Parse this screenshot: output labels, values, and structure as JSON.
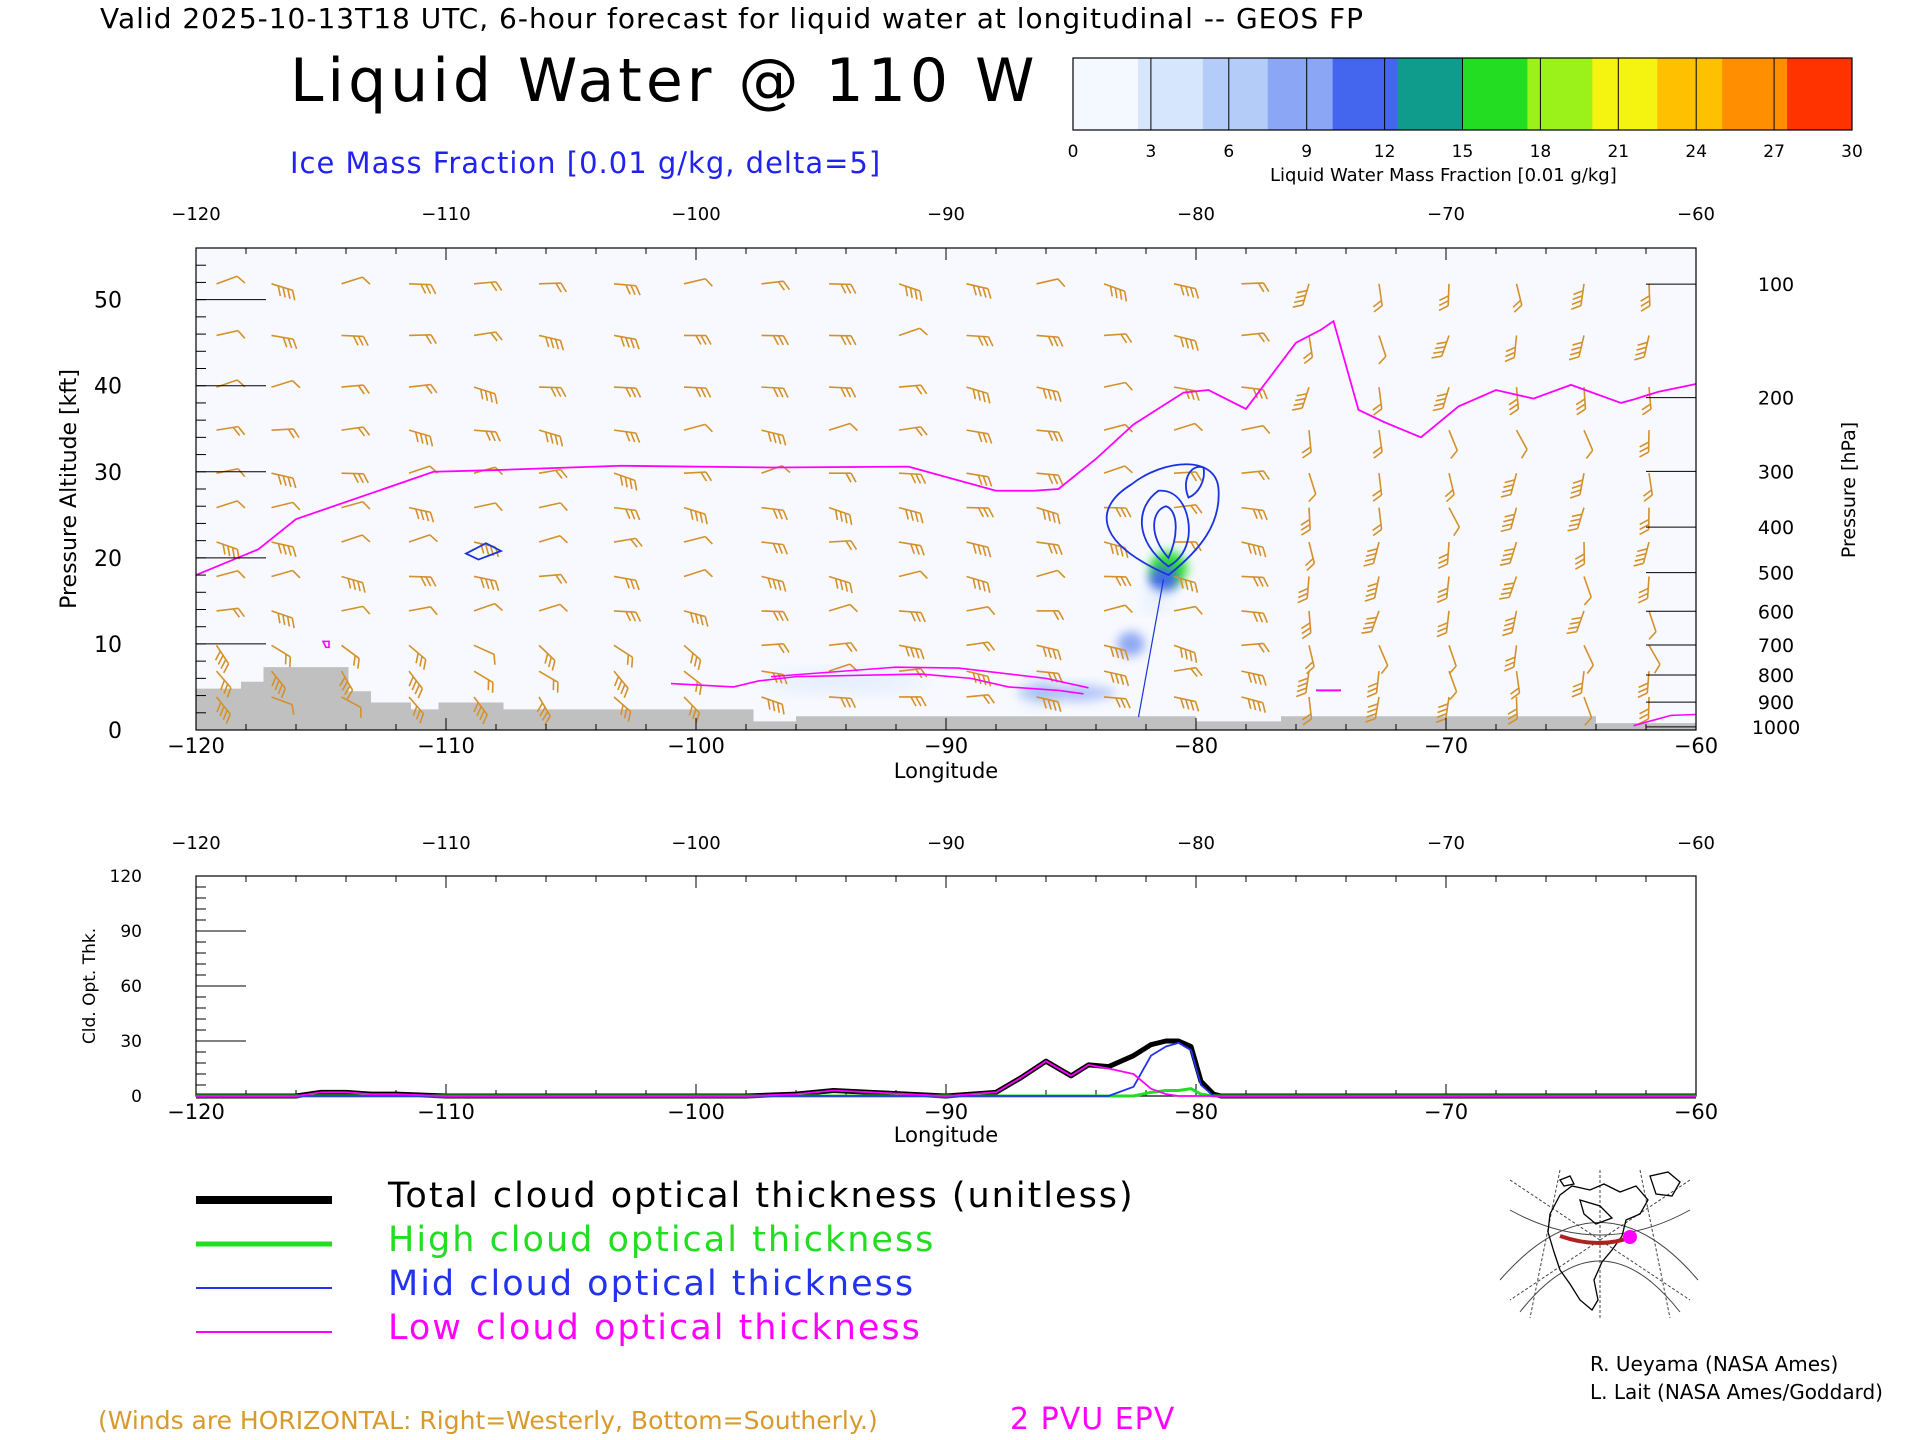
{
  "header": "Valid 2025-10-13T18 UTC, 6-hour forecast for liquid water at longitudinal -- GEOS FP",
  "title": "Liquid Water @ 110 W",
  "subtitle": "Ice Mass Fraction [0.01 g/kg, delta=5]",
  "colorbar": {
    "ticks": [
      "0",
      "3",
      "6",
      "9",
      "12",
      "15",
      "18",
      "21",
      "24",
      "27",
      "30"
    ],
    "label": "Liquid Water Mass Fraction [0.01 g/kg]",
    "colors": [
      "#f4f8ff",
      "#d6e6fc",
      "#b4cdf8",
      "#8aa6f4",
      "#4466ee",
      "#0f9c8c",
      "#22dd22",
      "#9bf21a",
      "#f4f410",
      "#ffc000",
      "#ff8f00",
      "#ff3300"
    ]
  },
  "colors": {
    "wind": "#d4912a",
    "epv": "#ff00ff",
    "ice_contour": "#1a33dd",
    "terrain": "#c0c0c0"
  },
  "legend": [
    {
      "label": "Total cloud optical thickness (unitless)",
      "color": "#000000"
    },
    {
      "label": "High cloud optical thickness",
      "color": "#22dd22"
    },
    {
      "label": "Mid cloud optical thickness",
      "color": "#2233ee"
    },
    {
      "label": "Low cloud optical thickness",
      "color": "#ff00ff"
    }
  ],
  "credits": [
    "R. Ueyama (NASA Ames)",
    "L. Lait (NASA Ames/Goddard)"
  ],
  "wind_note": "(Winds are HORIZONTAL: Right=Westerly, Bottom=Southerly.)",
  "epv_label": "2 PVU EPV",
  "chart_data": [
    {
      "type": "heatmap",
      "title": "Liquid Water @ 110 W",
      "xlabel": "Longitude",
      "ylabel": "Pressure Altitude [kft]",
      "y2label": "Pressure [hPa]",
      "xlim": [
        -120,
        -60
      ],
      "ylim": [
        0,
        56
      ],
      "x_ticks": [
        "−120",
        "−110",
        "−100",
        "−90",
        "−80",
        "−70",
        "−60"
      ],
      "y_ticks": [
        "0",
        "10",
        "20",
        "30",
        "40",
        "50"
      ],
      "pressure_ticks": [
        "100",
        "200",
        "300",
        "400",
        "500",
        "600",
        "700",
        "800",
        "900",
        "1000"
      ],
      "liquid_water_blobs": [
        {
          "lon": -81.1,
          "alt": 18.8,
          "value": 16
        },
        {
          "lon": -81.3,
          "alt": 17.5,
          "value": 10
        },
        {
          "lon": -81.6,
          "alt": 15.0,
          "value": 4
        },
        {
          "lon": -82.6,
          "alt": 10.0,
          "value": 9
        },
        {
          "lon": -86.2,
          "alt": 4.5,
          "value": 7
        },
        {
          "lon": -84.5,
          "alt": 4.2,
          "value": 3
        },
        {
          "lon": -95.0,
          "alt": 5.5,
          "value": 2
        },
        {
          "lon": -116.5,
          "alt": 7.0,
          "value": 1
        }
      ],
      "epv_2pvu": {
        "lon": [
          -120,
          -117.5,
          -116,
          -113,
          -110.5,
          -108,
          -103,
          -97,
          -91.5,
          -88,
          -86.5,
          -85.5,
          -84,
          -82.5,
          -80.5,
          -79.5,
          -78,
          -76,
          -75,
          -74.5,
          -73.5,
          -72.5,
          -71,
          -69.5,
          -68,
          -66.5,
          -65,
          -63,
          -62.5,
          -61.5,
          -60
        ],
        "alt": [
          18,
          21,
          24.5,
          27.5,
          30,
          30.2,
          30.7,
          30.5,
          30.6,
          27.8,
          27.8,
          28,
          31.5,
          35.5,
          39.2,
          39.5,
          37.3,
          45,
          46.5,
          47.5,
          37.2,
          35.8,
          34,
          37.6,
          39.5,
          38.5,
          40.1,
          38,
          38.4,
          39.3,
          40.2
        ]
      },
      "terrain": {
        "lon": [
          -120,
          -118.2,
          -117.3,
          -113.9,
          -113.0,
          -111.4,
          -110.3,
          -107.7,
          -101.0,
          -97.7,
          -96.0,
          -94.0,
          -88.0,
          -80.0,
          -76.6,
          -66.5,
          -64.0,
          -60.0
        ],
        "alt": [
          4.8,
          5.6,
          7.3,
          4.5,
          3.2,
          2.4,
          3.2,
          2.4,
          2.4,
          1.0,
          1.6,
          1.6,
          1.6,
          1.0,
          1.6,
          1.6,
          0.8,
          0.8
        ]
      }
    },
    {
      "type": "line",
      "xlabel": "Longitude",
      "ylabel": "Cld. Opt. Thk.",
      "xlim": [
        -120,
        -60
      ],
      "ylim": [
        0,
        120
      ],
      "x_ticks": [
        "−120",
        "−110",
        "−100",
        "−90",
        "−80",
        "−70",
        "−60"
      ],
      "y_ticks": [
        "0",
        "30",
        "60",
        "90",
        "120"
      ],
      "x": [
        -120,
        -116,
        -115,
        -114,
        -113,
        -112,
        -110,
        -100,
        -98,
        -96,
        -94.5,
        -93,
        -90,
        -88,
        -87,
        -86,
        -85,
        -84.3,
        -83.5,
        -82.5,
        -81.8,
        -81.2,
        -80.7,
        -80.2,
        -79.8,
        -79.3,
        -79,
        -78,
        -60
      ],
      "series": [
        {
          "name": "Total cloud optical thickness (unitless)",
          "values": [
            0,
            0,
            2,
            2,
            1,
            1,
            0,
            0,
            0,
            1,
            3,
            2,
            0,
            2,
            10,
            19,
            11,
            17,
            16,
            22,
            28,
            30,
            30,
            27,
            8,
            1,
            0,
            0,
            0
          ]
        },
        {
          "name": "High cloud optical thickness",
          "values": [
            0,
            0,
            0,
            0,
            0,
            0,
            0,
            0,
            0,
            0,
            0,
            0,
            0,
            0,
            0,
            0,
            0,
            0,
            0,
            0,
            2,
            3,
            3,
            4,
            1,
            0,
            0,
            0,
            0
          ]
        },
        {
          "name": "Mid cloud optical thickness",
          "values": [
            0,
            0,
            0,
            0,
            0,
            0,
            0,
            0,
            0,
            0,
            0,
            0,
            0,
            0,
            0,
            0,
            0,
            0,
            0,
            5,
            22,
            27,
            29,
            25,
            6,
            0,
            0,
            0,
            0
          ]
        },
        {
          "name": "Low cloud optical thickness",
          "values": [
            0,
            0,
            2,
            2,
            1,
            1,
            0,
            0,
            0,
            1,
            3,
            2,
            0,
            2,
            10,
            19,
            11,
            17,
            15,
            12,
            4,
            1,
            0,
            0,
            0,
            0,
            0,
            0,
            0
          ]
        }
      ]
    }
  ]
}
